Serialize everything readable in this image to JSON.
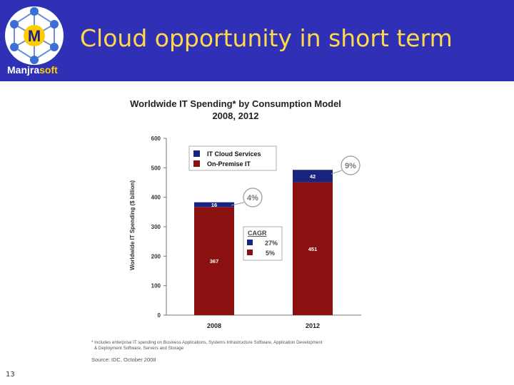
{
  "slide": {
    "title": "Cloud opportunity in short term",
    "page_number": "13",
    "logo": {
      "brand_prefix": "Manjra",
      "brand_suffix": "soft",
      "logo_letter": "M"
    }
  },
  "colors": {
    "header_bg": "#3030b6",
    "title": "#ffd94a",
    "cloud": "#1a237e",
    "onpremise": "#8b1010"
  },
  "chart_data": {
    "type": "bar",
    "stacked": true,
    "title": "Worldwide IT Spending* by Consumption Model",
    "subtitle": "2008, 2012",
    "ylabel": "Worldwide IT Spending ($ billion)",
    "xlabel": "",
    "ylim": [
      0,
      600
    ],
    "yticks": [
      "0",
      "100",
      "200",
      "300",
      "400",
      "500",
      "600"
    ],
    "categories": [
      "2008",
      "2012"
    ],
    "series": [
      {
        "name": "On-Premise IT",
        "values": [
          367,
          451
        ],
        "labels": [
          "367",
          "451"
        ],
        "color": "#8b1010"
      },
      {
        "name": "IT Cloud Services",
        "values": [
          16,
          42
        ],
        "labels": [
          "16",
          "42"
        ],
        "color": "#1a237e"
      }
    ],
    "legend": {
      "placement": "top-left",
      "entries": [
        "IT Cloud Services",
        "On-Premise IT"
      ]
    },
    "callouts": [
      "4%",
      "9%"
    ],
    "cagr": {
      "title": "CAGR",
      "cloud": "27%",
      "onpremise": "5%"
    },
    "footnote_1": "* Includes enterprise IT spending on Business Applications, Systems Infrastructure Software, Application Development",
    "footnote_2": "& Deployment Software, Servers and Storage",
    "source": "Source: IDC, October 2008",
    "grid": false
  }
}
